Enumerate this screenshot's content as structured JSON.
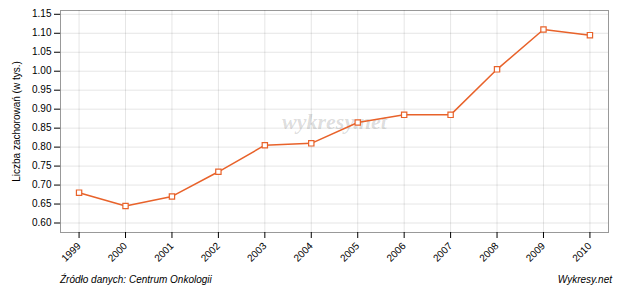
{
  "chart_data": {
    "type": "line",
    "x": [
      1999,
      2000,
      2001,
      2002,
      2003,
      2004,
      2005,
      2006,
      2007,
      2008,
      2009,
      2010
    ],
    "values": [
      0.68,
      0.645,
      0.67,
      0.735,
      0.805,
      0.81,
      0.865,
      0.885,
      0.885,
      1.005,
      1.11,
      1.095
    ],
    "color": "#e8622a",
    "marker": "square",
    "ylabel": "Liczba zachorowań (w tys.)",
    "xlim": [
      1998.6,
      2010.4
    ],
    "xticks": [
      1999,
      2000,
      2001,
      2002,
      2003,
      2004,
      2005,
      2006,
      2007,
      2008,
      2009,
      2010
    ],
    "ylim": [
      0.575,
      1.16
    ],
    "yticks": [
      {
        "value": 0.6,
        "label": "0.60"
      },
      0.65,
      {
        "value": 0.7,
        "label": "0.70"
      },
      0.75,
      {
        "value": 0.8,
        "label": "0.80"
      },
      0.85,
      {
        "value": 0.9,
        "label": "0.90"
      },
      0.95,
      {
        "value": 1.0,
        "label": "1.00"
      },
      1.05,
      {
        "value": 1.1,
        "label": "1.10"
      },
      1.15
    ],
    "grid": true,
    "annotations": [
      "wykresy.net",
      "Źródło danych:  Centrum Onkologii",
      "Wykresy.net"
    ]
  }
}
